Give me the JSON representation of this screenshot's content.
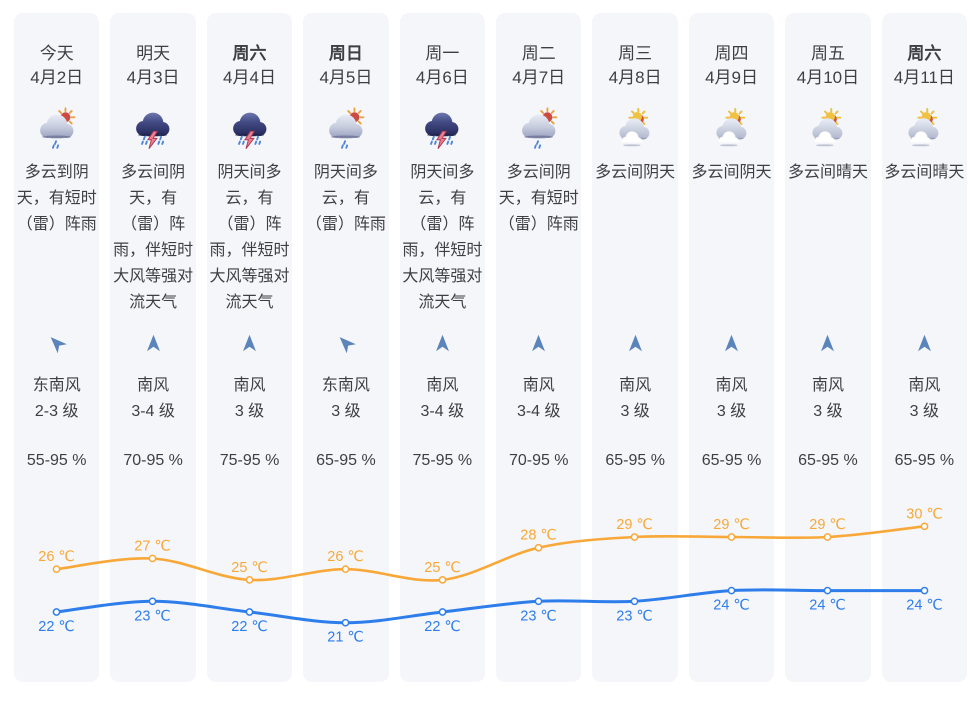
{
  "widget": {
    "name": "10日天气预报",
    "card_background": "#f5f6fa",
    "text_color": "#3d3f44",
    "wind_arrow_color": "#5b84ba"
  },
  "days": [
    {
      "label": "今天",
      "date": "4月2日",
      "bold": false,
      "icon": "cloud-sun-rain-icon",
      "desc": "多云到阴天，有短时（雷）阵雨",
      "wind_dir": "东南风",
      "wind_level": "2-3 级",
      "wind_arrow_rotation": -45,
      "humidity": "55-95 %"
    },
    {
      "label": "明天",
      "date": "4月3日",
      "bold": false,
      "icon": "thunder-rain-icon",
      "desc": "多云间阴天，有（雷）阵雨，伴短时大风等强对流天气",
      "wind_dir": "南风",
      "wind_level": "3-4 级",
      "wind_arrow_rotation": 0,
      "humidity": "70-95 %"
    },
    {
      "label": "周六",
      "date": "4月4日",
      "bold": true,
      "icon": "thunder-rain-icon",
      "desc": "阴天间多云，有（雷）阵雨，伴短时大风等强对流天气",
      "wind_dir": "南风",
      "wind_level": "3 级",
      "wind_arrow_rotation": 0,
      "humidity": "75-95 %"
    },
    {
      "label": "周日",
      "date": "4月5日",
      "bold": true,
      "icon": "cloud-sun-rain-icon",
      "desc": "阴天间多云，有（雷）阵雨",
      "wind_dir": "东南风",
      "wind_level": "3 级",
      "wind_arrow_rotation": -45,
      "humidity": "65-95 %"
    },
    {
      "label": "周一",
      "date": "4月6日",
      "bold": false,
      "icon": "thunder-rain-icon",
      "desc": "阴天间多云，有（雷）阵雨，伴短时大风等强对流天气",
      "wind_dir": "南风",
      "wind_level": "3-4 级",
      "wind_arrow_rotation": 0,
      "humidity": "75-95 %"
    },
    {
      "label": "周二",
      "date": "4月7日",
      "bold": false,
      "icon": "cloud-sun-rain-icon",
      "desc": "多云间阴天，有短时（雷）阵雨",
      "wind_dir": "南风",
      "wind_level": "3-4 级",
      "wind_arrow_rotation": 0,
      "humidity": "70-95 %"
    },
    {
      "label": "周三",
      "date": "4月8日",
      "bold": false,
      "icon": "cloud-sun-icon",
      "desc": "多云间阴天",
      "wind_dir": "南风",
      "wind_level": "3 级",
      "wind_arrow_rotation": 0,
      "humidity": "65-95 %"
    },
    {
      "label": "周四",
      "date": "4月9日",
      "bold": false,
      "icon": "cloud-sun-icon",
      "desc": "多云间阴天",
      "wind_dir": "南风",
      "wind_level": "3 级",
      "wind_arrow_rotation": 0,
      "humidity": "65-95 %"
    },
    {
      "label": "周五",
      "date": "4月10日",
      "bold": false,
      "icon": "cloud-sun-icon",
      "desc": "多云间晴天",
      "wind_dir": "南风",
      "wind_level": "3 级",
      "wind_arrow_rotation": 0,
      "humidity": "65-95 %"
    },
    {
      "label": "周六",
      "date": "4月11日",
      "bold": true,
      "icon": "cloud-sun-icon",
      "desc": "多云间晴天",
      "wind_dir": "南风",
      "wind_level": "3 级",
      "wind_arrow_rotation": 0,
      "humidity": "65-95 %"
    }
  ],
  "chart_data": {
    "type": "line",
    "categories": [
      "4月2日",
      "4月3日",
      "4月4日",
      "4月5日",
      "4月6日",
      "4月7日",
      "4月8日",
      "4月9日",
      "4月10日",
      "4月11日"
    ],
    "unit": "℃",
    "smooth": true,
    "grid": false,
    "legend": "none",
    "series": [
      {
        "name": "high",
        "color": "#f8a838",
        "values": [
          26,
          27,
          25,
          26,
          25,
          28,
          29,
          29,
          29,
          30
        ],
        "label_position": "above"
      },
      {
        "name": "low",
        "color": "#2d7deb",
        "values": [
          22,
          23,
          22,
          21,
          22,
          23,
          23,
          24,
          24,
          24
        ],
        "label_position": "below"
      }
    ]
  }
}
